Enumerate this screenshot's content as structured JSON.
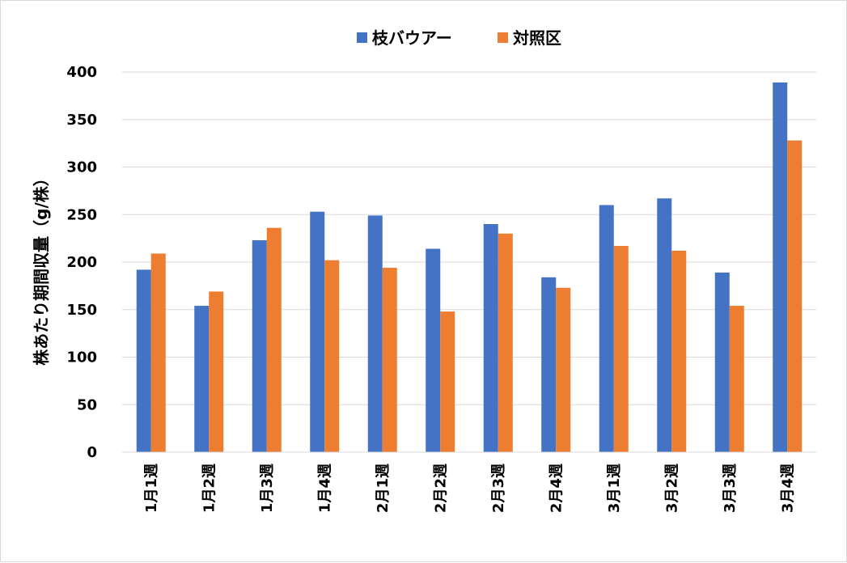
{
  "chart_data": {
    "type": "bar",
    "title": "",
    "xlabel": "",
    "ylabel": "株あたり期間収量（g/株）",
    "ylim": [
      0,
      400
    ],
    "yticks": [
      0,
      50,
      100,
      150,
      200,
      250,
      300,
      350,
      400
    ],
    "grid": true,
    "legend_position": "top",
    "categories": [
      "1月1週",
      "1月2週",
      "1月3週",
      "1月4週",
      "2月1週",
      "2月2週",
      "2月3週",
      "2月4週",
      "3月1週",
      "3月2週",
      "3月3週",
      "3月4週"
    ],
    "series": [
      {
        "name": "枝バウアー",
        "color": "#4472c4",
        "values": [
          192,
          154,
          223,
          253,
          249,
          214,
          240,
          184,
          260,
          267,
          189,
          389
        ]
      },
      {
        "name": "対照区",
        "color": "#ed7d31",
        "values": [
          209,
          169,
          236,
          202,
          194,
          148,
          230,
          173,
          217,
          212,
          154,
          328
        ]
      }
    ]
  }
}
